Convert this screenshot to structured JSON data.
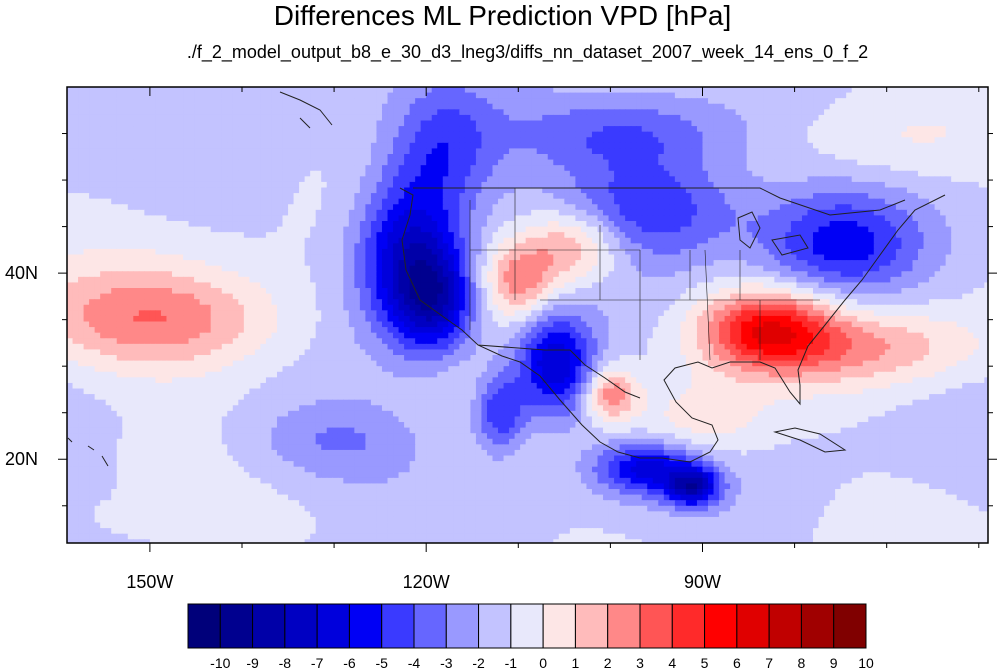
{
  "chart_data": {
    "type": "heatmap",
    "title": "Differences ML Prediction VPD [hPa]",
    "subtitle": "./f_2_model_output_b8_e_30_d3_lneg3/diffs_nn_dataset_2007_week_14_ens_0_f_2",
    "xlim": [
      -159,
      -59
    ],
    "ylim": [
      11,
      60
    ],
    "x_ticks": [
      {
        "value": -150,
        "label": "150W"
      },
      {
        "value": -120,
        "label": "120W"
      },
      {
        "value": -90,
        "label": "90W"
      }
    ],
    "y_ticks": [
      {
        "value": 40,
        "label": "40N"
      },
      {
        "value": 20,
        "label": "20N"
      }
    ],
    "colorbar": {
      "labels": [
        "-10",
        "-9",
        "-8",
        "-7",
        "-6",
        "-5",
        "-4",
        "-3",
        "-2",
        "-1",
        "0",
        "1",
        "2",
        "3",
        "4",
        "5",
        "6",
        "7",
        "8",
        "9",
        "10"
      ],
      "colors": [
        "#00007a",
        "#00008f",
        "#0000a8",
        "#0000c2",
        "#0000dc",
        "#0000f5",
        "#3a3aff",
        "#6666ff",
        "#9999ff",
        "#c3c3ff",
        "#e8e8fb",
        "#fde6e6",
        "#ffbbbb",
        "#ff8888",
        "#ff5555",
        "#ff2a2a",
        "#ff0000",
        "#e00000",
        "#c00000",
        "#a00000",
        "#800000"
      ]
    },
    "anomalies": [
      {
        "lon": -122,
        "lat": 42,
        "value": -6,
        "sx": 4,
        "sy": 6
      },
      {
        "lon": -119,
        "lat": 37,
        "value": -5,
        "sx": 3,
        "sy": 4
      },
      {
        "lon": -110,
        "lat": 39,
        "value": 4,
        "sx": 3,
        "sy": 3
      },
      {
        "lon": -104,
        "lat": 43,
        "value": 4,
        "sx": 4,
        "sy": 3
      },
      {
        "lon": -106,
        "lat": 30,
        "value": -6,
        "sx": 3,
        "sy": 4
      },
      {
        "lon": -100,
        "lat": 27,
        "value": 4,
        "sx": 2,
        "sy": 2
      },
      {
        "lon": -83,
        "lat": 34,
        "value": 6,
        "sx": 5,
        "sy": 3
      },
      {
        "lon": -96,
        "lat": 47,
        "value": -4,
        "sx": 7,
        "sy": 4
      },
      {
        "lon": -75,
        "lat": 43,
        "value": -4,
        "sx": 6,
        "sy": 4
      },
      {
        "lon": -149,
        "lat": 35,
        "value": 4,
        "sx": 10,
        "sy": 4
      },
      {
        "lon": -96,
        "lat": 19,
        "value": -5,
        "sx": 4,
        "sy": 2
      },
      {
        "lon": -91,
        "lat": 17,
        "value": -6,
        "sx": 2,
        "sy": 1.5
      },
      {
        "lon": -72,
        "lat": 32,
        "value": 3,
        "sx": 9,
        "sy": 3
      },
      {
        "lon": -118,
        "lat": 53,
        "value": -3,
        "sx": 4,
        "sy": 5
      },
      {
        "lon": -98,
        "lat": 55,
        "value": -3,
        "sx": 9,
        "sy": 3
      },
      {
        "lon": -130,
        "lat": 22,
        "value": -2,
        "sx": 7,
        "sy": 3
      },
      {
        "lon": -90,
        "lat": 24,
        "value": 2,
        "sx": 5,
        "sy": 3
      },
      {
        "lon": -145,
        "lat": 13,
        "value": 1,
        "sx": 8,
        "sy": 2
      },
      {
        "lon": -70,
        "lat": 54,
        "value": 1,
        "sx": 8,
        "sy": 3
      },
      {
        "lon": -112,
        "lat": 25,
        "value": -4,
        "sx": 2,
        "sy": 3
      }
    ]
  }
}
